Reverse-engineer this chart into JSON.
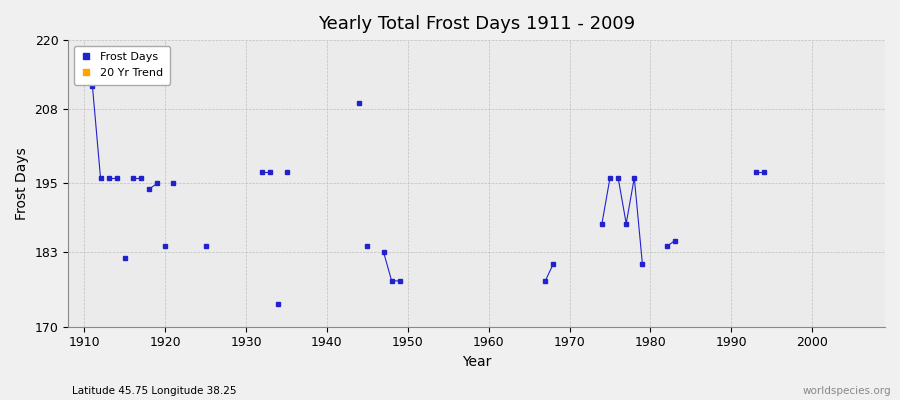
{
  "title": "Yearly Total Frost Days 1911 - 2009",
  "xlabel": "Year",
  "ylabel": "Frost Days",
  "xlim": [
    1908,
    2009
  ],
  "ylim": [
    170,
    220
  ],
  "yticks": [
    170,
    183,
    195,
    208,
    220
  ],
  "xticks": [
    1910,
    1920,
    1930,
    1940,
    1950,
    1960,
    1970,
    1980,
    1990,
    2000
  ],
  "background_color": "#f0f0f0",
  "plot_bg_color": "#ebebeb",
  "frost_color": "#2222cc",
  "trend_color": "#ffa500",
  "marker": "s",
  "markersize": 3,
  "subtitle": "Latitude 45.75 Longitude 38.25",
  "watermark": "worldspecies.org",
  "segments": [
    {
      "years": [
        1911,
        1912
      ],
      "values": [
        212,
        196
      ]
    },
    {
      "years": [
        1913,
        1914
      ],
      "values": [
        196,
        196
      ]
    },
    {
      "years": [
        1915
      ],
      "values": [
        182
      ]
    },
    {
      "years": [
        1916,
        1917
      ],
      "values": [
        196,
        196
      ]
    },
    {
      "years": [
        1918,
        1919
      ],
      "values": [
        194,
        195
      ]
    },
    {
      "years": [
        1920
      ],
      "values": [
        184
      ]
    },
    {
      "years": [
        1921
      ],
      "values": [
        195
      ]
    },
    {
      "years": [
        1925
      ],
      "values": [
        184
      ]
    },
    {
      "years": [
        1932,
        1933
      ],
      "values": [
        197,
        197
      ]
    },
    {
      "years": [
        1934
      ],
      "values": [
        174
      ]
    },
    {
      "years": [
        1935
      ],
      "values": [
        197
      ]
    },
    {
      "years": [
        1944
      ],
      "values": [
        209
      ]
    },
    {
      "years": [
        1945
      ],
      "values": [
        184
      ]
    },
    {
      "years": [
        1947,
        1948,
        1949
      ],
      "values": [
        183,
        178,
        178
      ]
    },
    {
      "years": [
        1967,
        1968
      ],
      "values": [
        178,
        181
      ]
    },
    {
      "years": [
        1974,
        1975
      ],
      "values": [
        188,
        196
      ]
    },
    {
      "years": [
        1976,
        1977,
        1978,
        1979
      ],
      "values": [
        196,
        188,
        196,
        181
      ]
    },
    {
      "years": [
        1982,
        1983
      ],
      "values": [
        184,
        185
      ]
    },
    {
      "years": [
        1993,
        1994
      ],
      "values": [
        197,
        197
      ]
    }
  ]
}
